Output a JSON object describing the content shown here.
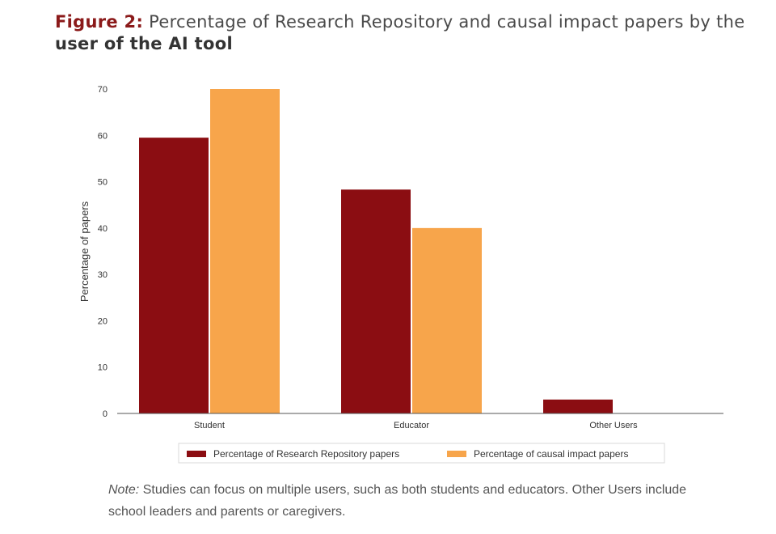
{
  "heading": {
    "figure_label": "Figure 2:",
    "text_before": " Percentage of Research Repository and causal impact papers by the ",
    "text_bold": "user of the AI tool"
  },
  "note": {
    "label": "Note:",
    "text": " Studies can focus on multiple users, such as both students and educators. Other Users include school leaders and parents or caregivers."
  },
  "colors": {
    "repository": "#8b0d12",
    "causal": "#f7a54b",
    "axis": "#555555"
  },
  "chart_data": {
    "type": "bar",
    "title": "",
    "xlabel": "",
    "ylabel": "Percentage of papers",
    "categories": [
      "Student",
      "Educator",
      "Other Users"
    ],
    "series": [
      {
        "name": "Percentage of Research Repository papers",
        "values": [
          59.5,
          48.3,
          3
        ]
      },
      {
        "name": "Percentage of causal impact papers",
        "values": [
          70,
          40,
          0
        ]
      }
    ],
    "ylim": [
      0,
      72
    ],
    "yticks": [
      0,
      10,
      20,
      30,
      40,
      50,
      60,
      70
    ],
    "grid": false,
    "legend_position": "bottom"
  }
}
